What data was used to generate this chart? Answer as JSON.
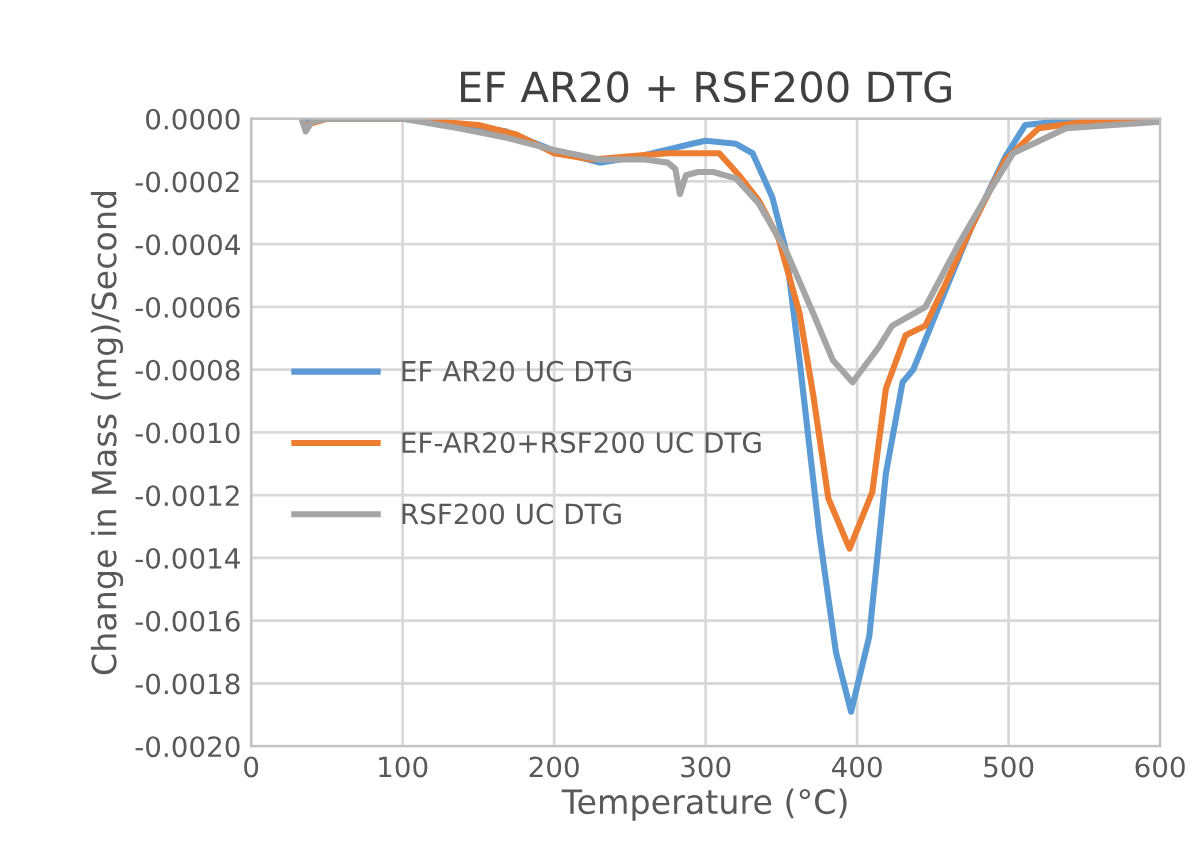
{
  "chart_data": {
    "type": "line",
    "title": "EF AR20 + RSF200 DTG",
    "xlabel": "Temperature (°C)",
    "ylabel": "Change in Mass (mg)/Second",
    "xlim": [
      0,
      600
    ],
    "xticks": [
      0,
      100,
      200,
      300,
      400,
      500,
      600
    ],
    "ylim": [
      -0.002,
      0.0
    ],
    "yticks": [
      {
        "value": 0.0,
        "label": "0.0000"
      },
      {
        "value": -0.0002,
        "label": "-0.0002"
      },
      {
        "value": -0.0004,
        "label": "-0.0004"
      },
      {
        "value": -0.0006,
        "label": "-0.0006"
      },
      {
        "value": -0.0008,
        "label": "-0.0008"
      },
      {
        "value": -0.001,
        "label": "-0.0010"
      },
      {
        "value": -0.0012,
        "label": "-0.0012"
      },
      {
        "value": -0.0014,
        "label": "-0.0014"
      },
      {
        "value": -0.0016,
        "label": "-0.0016"
      },
      {
        "value": -0.0018,
        "label": "-0.0018"
      },
      {
        "value": -0.002,
        "label": "-0.0020"
      }
    ],
    "grid": true,
    "legend": "left",
    "marker": "none",
    "line_style": "solid",
    "series": [
      {
        "name": "EF AR20 UC DTG",
        "color": "#5b9bd5",
        "x": [
          36,
          50,
          100,
          137,
          168,
          199,
          230,
          256,
          291,
          300,
          320,
          331,
          344,
          353,
          362,
          375,
          386,
          396,
          408,
          419,
          430,
          437,
          458,
          476,
          498,
          511,
          550,
          600
        ],
        "values": [
          0.0,
          0.0,
          0.0,
          -2e-05,
          -4e-05,
          -0.0001,
          -0.00014,
          -0.00012,
          -8e-05,
          -7e-05,
          -8e-05,
          -0.00011,
          -0.00025,
          -0.00042,
          -0.00077,
          -0.00132,
          -0.0017,
          -0.00189,
          -0.00165,
          -0.00113,
          -0.00084,
          -0.0008,
          -0.00055,
          -0.00034,
          -0.00012,
          -2e-05,
          0.0,
          0.0
        ]
      },
      {
        "name": "EF-AR20+RSF200 UC DTG",
        "color": "#ed7d31",
        "x": [
          36,
          50,
          100,
          150,
          175,
          200,
          225,
          250,
          275,
          290,
          309,
          322,
          335,
          348,
          362,
          371,
          381,
          395,
          410,
          419,
          432,
          445,
          458,
          476,
          498,
          520,
          550,
          600
        ],
        "values": [
          -2e-05,
          0.0,
          0.0,
          -2e-05,
          -5e-05,
          -0.00011,
          -0.00013,
          -0.00012,
          -0.00011,
          -0.00011,
          -0.00011,
          -0.00018,
          -0.00026,
          -0.00038,
          -0.00062,
          -0.00088,
          -0.00121,
          -0.00137,
          -0.00119,
          -0.00086,
          -0.00069,
          -0.00066,
          -0.00053,
          -0.00034,
          -0.00013,
          -3e-05,
          -1e-05,
          0.0
        ]
      },
      {
        "name": "RSF200 UC DTG",
        "color": "#a5a5a5",
        "x": [
          34,
          36,
          40,
          50,
          100,
          137,
          168,
          200,
          230,
          260,
          275,
          280,
          283,
          287,
          295,
          305,
          320,
          335,
          353,
          371,
          384,
          397,
          414,
          423,
          445,
          467,
          485,
          503,
          538,
          600
        ],
        "values": [
          -1e-05,
          -4e-05,
          -1e-05,
          0.0,
          0.0,
          -3e-05,
          -6e-05,
          -0.0001,
          -0.00013,
          -0.00013,
          -0.00014,
          -0.00016,
          -0.00024,
          -0.00018,
          -0.00017,
          -0.00017,
          -0.00019,
          -0.00027,
          -0.00042,
          -0.00062,
          -0.00077,
          -0.00084,
          -0.00073,
          -0.00066,
          -0.0006,
          -0.0004,
          -0.00025,
          -0.00011,
          -3e-05,
          -1e-05
        ]
      }
    ]
  }
}
